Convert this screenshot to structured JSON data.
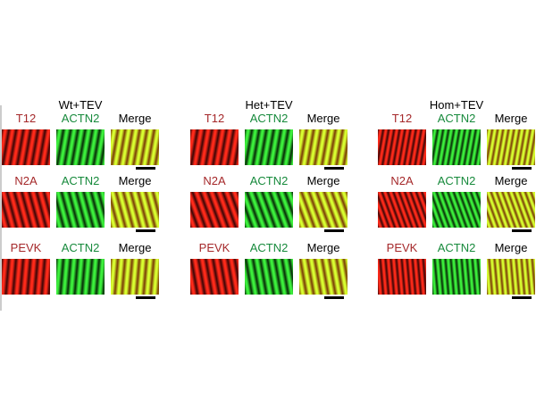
{
  "panels": [
    {
      "title": "Wt+TEV",
      "rows": [
        [
          "T12",
          "ACTN2",
          "Merge"
        ],
        [
          "N2A",
          "ACTN2",
          "Merge"
        ],
        [
          "PEVK",
          "ACTN2",
          "Merge"
        ]
      ]
    },
    {
      "title": "Het+TEV",
      "rows": [
        [
          "T12",
          "ACTN2",
          "Merge"
        ],
        [
          "N2A",
          "ACTN2",
          "Merge"
        ],
        [
          "PEVK",
          "ACTN2",
          "Merge"
        ]
      ]
    },
    {
      "title": "Hom+TEV",
      "rows": [
        [
          "T12",
          "ACTN2",
          "Merge"
        ],
        [
          "N2A",
          "ACTN2",
          "Merge"
        ],
        [
          "PEVK",
          "ACTN2",
          "Merge"
        ]
      ]
    }
  ]
}
